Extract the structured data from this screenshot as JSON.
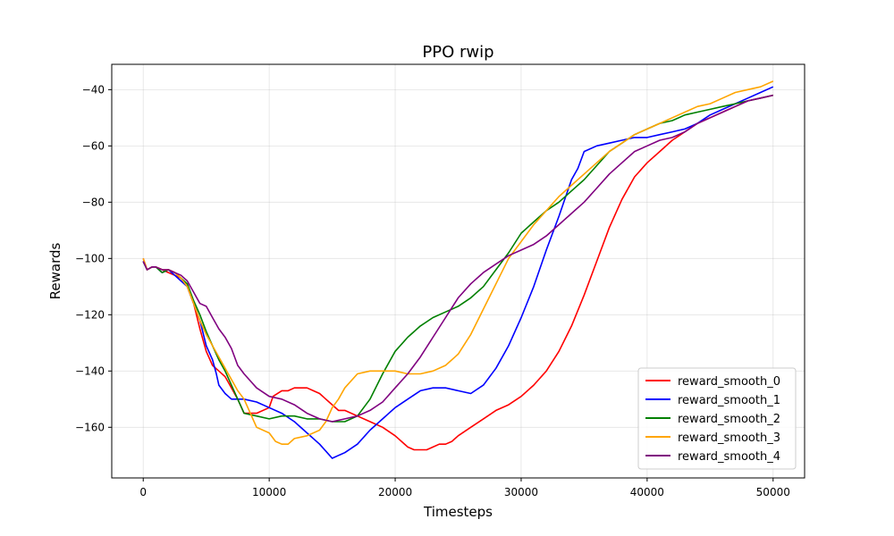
{
  "chart_data": {
    "type": "line",
    "title": "PPO rwip",
    "xlabel": "Timesteps",
    "ylabel": "Rewards",
    "xlim": [
      -2500,
      52500
    ],
    "ylim": [
      -178,
      -31
    ],
    "xticks": [
      0,
      10000,
      20000,
      30000,
      40000,
      50000
    ],
    "yticks": [
      -160,
      -140,
      -120,
      -100,
      -80,
      -60,
      -40
    ],
    "grid": true,
    "legend_position": "lower-right",
    "series": [
      {
        "name": "reward_smooth_0",
        "color": "#ff0000",
        "x": [
          0,
          300,
          700,
          1000,
          1500,
          2000,
          2500,
          3000,
          3500,
          4000,
          4500,
          5000,
          5500,
          6000,
          6500,
          7000,
          7500,
          8000,
          9000,
          10000,
          10300,
          11000,
          11500,
          12000,
          12500,
          13000,
          13500,
          14000,
          14500,
          15000,
          15500,
          16000,
          17000,
          18000,
          19000,
          20000,
          20500,
          21000,
          21500,
          22000,
          22500,
          23000,
          23500,
          24000,
          24500,
          25000,
          26000,
          27000,
          28000,
          29000,
          30000,
          31000,
          32000,
          33000,
          34000,
          35000,
          36000,
          37000,
          38000,
          39000,
          40000,
          41000,
          42000,
          43000,
          44000,
          45000,
          46000,
          47000,
          48000,
          49000,
          50000
        ],
        "y": [
          -100,
          -104,
          -103,
          -103,
          -104,
          -105,
          -106,
          -107,
          -110,
          -116,
          -125,
          -133,
          -138,
          -140,
          -142,
          -146,
          -150,
          -155,
          -155,
          -153,
          -149,
          -147,
          -147,
          -146,
          -146,
          -146,
          -147,
          -148,
          -150,
          -152,
          -154,
          -154,
          -156,
          -158,
          -160,
          -163,
          -165,
          -167,
          -168,
          -168,
          -168,
          -167,
          -166,
          -166,
          -165,
          -163,
          -160,
          -157,
          -154,
          -152,
          -149,
          -145,
          -140,
          -133,
          -124,
          -113,
          -101,
          -89,
          -79,
          -71,
          -66,
          -62,
          -58,
          -55,
          -52,
          -50,
          -48,
          -46,
          -44,
          -43,
          -42
        ]
      },
      {
        "name": "reward_smooth_1",
        "color": "#0000ff",
        "x": [
          0,
          300,
          700,
          1000,
          1500,
          2000,
          2500,
          3000,
          3500,
          4000,
          4500,
          5000,
          5500,
          5800,
          6000,
          6500,
          7000,
          7500,
          8000,
          9000,
          10000,
          11000,
          12000,
          13000,
          14000,
          15000,
          15500,
          16000,
          17000,
          18000,
          19000,
          20000,
          21000,
          22000,
          23000,
          24000,
          25000,
          26000,
          27000,
          28000,
          29000,
          30000,
          31000,
          32000,
          33000,
          34000,
          34500,
          35000,
          36000,
          37000,
          38000,
          39000,
          40000,
          41000,
          42000,
          43000,
          44000,
          45000,
          46000,
          47000,
          48000,
          49000,
          50000
        ],
        "y": [
          -101,
          -104,
          -103,
          -103,
          -105,
          -104,
          -106,
          -108,
          -110,
          -116,
          -122,
          -131,
          -136,
          -141,
          -145,
          -148,
          -150,
          -150,
          -150,
          -151,
          -153,
          -155,
          -158,
          -162,
          -166,
          -171,
          -170,
          -169,
          -166,
          -161,
          -157,
          -153,
          -150,
          -147,
          -146,
          -146,
          -147,
          -148,
          -145,
          -139,
          -131,
          -121,
          -110,
          -97,
          -85,
          -72,
          -68,
          -62,
          -60,
          -59,
          -58,
          -57,
          -57,
          -56,
          -55,
          -54,
          -52,
          -49,
          -47,
          -45,
          -43,
          -41,
          -39
        ]
      },
      {
        "name": "reward_smooth_2",
        "color": "#008000",
        "x": [
          0,
          300,
          700,
          1000,
          1500,
          2000,
          2500,
          3000,
          3500,
          4000,
          4500,
          5000,
          5500,
          6000,
          6500,
          7000,
          7500,
          8000,
          9000,
          10000,
          11000,
          12000,
          13000,
          14000,
          15000,
          16000,
          17000,
          18000,
          19000,
          20000,
          21000,
          22000,
          23000,
          24000,
          25000,
          26000,
          27000,
          28000,
          29000,
          30000,
          31000,
          32000,
          33000,
          34000,
          35000,
          36000,
          37000,
          38000,
          39000,
          40000,
          41000,
          42000,
          43000,
          44000,
          45000,
          46000,
          47000,
          48000,
          49000,
          50000
        ],
        "y": [
          -101,
          -104,
          -103,
          -103,
          -105,
          -104,
          -105,
          -107,
          -109,
          -115,
          -120,
          -126,
          -131,
          -136,
          -140,
          -145,
          -150,
          -155,
          -156,
          -157,
          -156,
          -156,
          -157,
          -157,
          -158,
          -158,
          -156,
          -150,
          -141,
          -133,
          -128,
          -124,
          -121,
          -119,
          -117,
          -114,
          -110,
          -104,
          -98,
          -91,
          -87,
          -83,
          -80,
          -76,
          -72,
          -67,
          -62,
          -59,
          -56,
          -54,
          -52,
          -51,
          -49,
          -48,
          -47,
          -46,
          -45,
          -44,
          -43,
          -42
        ]
      },
      {
        "name": "reward_smooth_3",
        "color": "#ffa500",
        "x": [
          0,
          300,
          700,
          1000,
          1500,
          2000,
          2500,
          3000,
          3500,
          4000,
          4500,
          5000,
          5500,
          6000,
          6500,
          7000,
          7500,
          8000,
          8500,
          9000,
          10000,
          10500,
          11000,
          11500,
          12000,
          13000,
          14000,
          14500,
          15000,
          15500,
          16000,
          17000,
          18000,
          19000,
          20000,
          21000,
          22000,
          23000,
          24000,
          25000,
          26000,
          27000,
          28000,
          29000,
          30000,
          31000,
          32000,
          33000,
          34000,
          35000,
          36000,
          37000,
          38000,
          39000,
          40000,
          41000,
          42000,
          43000,
          44000,
          45000,
          46000,
          47000,
          48000,
          49000,
          50000
        ],
        "y": [
          -100,
          -104,
          -103,
          -103,
          -104,
          -104,
          -105,
          -107,
          -110,
          -116,
          -122,
          -127,
          -131,
          -135,
          -139,
          -143,
          -147,
          -150,
          -155,
          -160,
          -162,
          -165,
          -166,
          -166,
          -164,
          -163,
          -161,
          -158,
          -153,
          -150,
          -146,
          -141,
          -140,
          -140,
          -140,
          -141,
          -141,
          -140,
          -138,
          -134,
          -127,
          -118,
          -109,
          -100,
          -94,
          -88,
          -83,
          -78,
          -74,
          -70,
          -66,
          -62,
          -59,
          -56,
          -54,
          -52,
          -50,
          -48,
          -46,
          -45,
          -43,
          -41,
          -40,
          -39,
          -37
        ]
      },
      {
        "name": "reward_smooth_4",
        "color": "#800080",
        "x": [
          0,
          300,
          700,
          1000,
          1500,
          2000,
          2500,
          3000,
          3500,
          4000,
          4500,
          5000,
          5500,
          6000,
          6500,
          7000,
          7500,
          8000,
          9000,
          10000,
          11000,
          12000,
          13000,
          14000,
          15000,
          16000,
          17000,
          18000,
          19000,
          20000,
          21000,
          22000,
          23000,
          24000,
          25000,
          26000,
          27000,
          28000,
          29000,
          30000,
          31000,
          32000,
          33000,
          34000,
          35000,
          36000,
          37000,
          38000,
          39000,
          40000,
          41000,
          42000,
          43000,
          44000,
          45000,
          46000,
          47000,
          48000,
          49000,
          50000
        ],
        "y": [
          -101,
          -104,
          -103,
          -103,
          -104,
          -104,
          -105,
          -106,
          -108,
          -112,
          -116,
          -117,
          -121,
          -125,
          -128,
          -132,
          -138,
          -141,
          -146,
          -149,
          -150,
          -152,
          -155,
          -157,
          -158,
          -157,
          -156,
          -154,
          -151,
          -146,
          -141,
          -135,
          -128,
          -121,
          -114,
          -109,
          -105,
          -102,
          -99,
          -97,
          -95,
          -92,
          -88,
          -84,
          -80,
          -75,
          -70,
          -66,
          -62,
          -60,
          -58,
          -57,
          -55,
          -52,
          -50,
          -48,
          -46,
          -44,
          -43,
          -42
        ]
      }
    ]
  }
}
